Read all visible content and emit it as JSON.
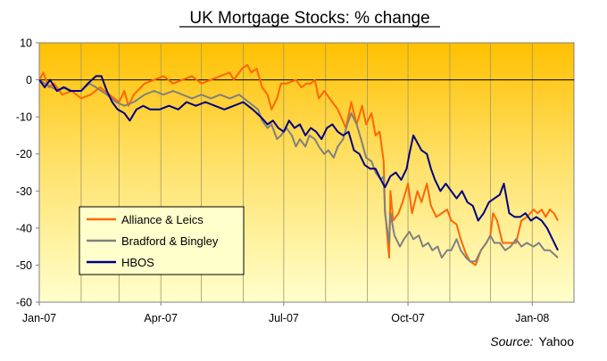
{
  "chart_data": {
    "type": "line",
    "title": "UK Mortgage Stocks: % change",
    "xlabel": "",
    "ylabel": "",
    "x_range": [
      "2007-01-01",
      "2008-01-20"
    ],
    "ylim": [
      -60,
      10
    ],
    "y_ticks": [
      "10",
      "0",
      "-10",
      "-20",
      "-30",
      "-40",
      "-50",
      "-60"
    ],
    "x_ticks": [
      {
        "date": "2007-01-01",
        "label": "Jan-07"
      },
      {
        "date": "2007-04-01",
        "label": "Apr-07"
      },
      {
        "date": "2007-07-01",
        "label": "Jul-07"
      },
      {
        "date": "2007-10-01",
        "label": "Oct-07"
      },
      {
        "date": "2008-01-01",
        "label": "Jan-08"
      }
    ],
    "grid": "vertical lines at each month; horizontal zero line",
    "background": "gradient from orange-gold (top) to pale yellow (bottom)",
    "legend_position": "bottom-left",
    "series": [
      {
        "name": "Alliance & Leics",
        "color": "#ff6600",
        "points": [
          [
            "2007-01-01",
            0
          ],
          [
            "2007-01-04",
            2
          ],
          [
            "2007-01-08",
            -2
          ],
          [
            "2007-01-12",
            -1
          ],
          [
            "2007-01-18",
            -4
          ],
          [
            "2007-01-25",
            -3
          ],
          [
            "2007-02-01",
            -5
          ],
          [
            "2007-02-08",
            -4
          ],
          [
            "2007-02-15",
            -2
          ],
          [
            "2007-02-22",
            -4
          ],
          [
            "2007-03-01",
            -6
          ],
          [
            "2007-03-05",
            -3
          ],
          [
            "2007-03-08",
            -7
          ],
          [
            "2007-03-12",
            -4
          ],
          [
            "2007-03-20",
            -1
          ],
          [
            "2007-03-27",
            0
          ],
          [
            "2007-04-03",
            1
          ],
          [
            "2007-04-10",
            -1
          ],
          [
            "2007-04-17",
            0
          ],
          [
            "2007-04-24",
            1
          ],
          [
            "2007-05-01",
            -1
          ],
          [
            "2007-05-08",
            0
          ],
          [
            "2007-05-15",
            1
          ],
          [
            "2007-05-22",
            2
          ],
          [
            "2007-05-25",
            0
          ],
          [
            "2007-05-31",
            3
          ],
          [
            "2007-06-04",
            4
          ],
          [
            "2007-06-07",
            2
          ],
          [
            "2007-06-11",
            3
          ],
          [
            "2007-06-15",
            -2
          ],
          [
            "2007-06-19",
            -4
          ],
          [
            "2007-06-22",
            -8
          ],
          [
            "2007-06-26",
            -5
          ],
          [
            "2007-06-29",
            -1
          ],
          [
            "2007-07-03",
            -1
          ],
          [
            "2007-07-10",
            0
          ],
          [
            "2007-07-14",
            -2
          ],
          [
            "2007-07-18",
            -1
          ],
          [
            "2007-07-21",
            -1
          ],
          [
            "2007-07-24",
            0
          ],
          [
            "2007-07-27",
            -5
          ],
          [
            "2007-07-31",
            -3
          ],
          [
            "2007-08-06",
            -6
          ],
          [
            "2007-08-10",
            -8
          ],
          [
            "2007-08-16",
            -13
          ],
          [
            "2007-08-20",
            -6
          ],
          [
            "2007-08-24",
            -12
          ],
          [
            "2007-08-28",
            -7
          ],
          [
            "2007-08-31",
            -12
          ],
          [
            "2007-09-04",
            -9
          ],
          [
            "2007-09-07",
            -15
          ],
          [
            "2007-09-10",
            -14
          ],
          [
            "2007-09-13",
            -22
          ],
          [
            "2007-09-14",
            -35
          ],
          [
            "2007-09-17",
            -48
          ],
          [
            "2007-09-18",
            -30
          ],
          [
            "2007-09-20",
            -38
          ],
          [
            "2007-09-24",
            -36
          ],
          [
            "2007-09-27",
            -33
          ],
          [
            "2007-10-01",
            -28
          ],
          [
            "2007-10-04",
            -36
          ],
          [
            "2007-10-08",
            -30
          ],
          [
            "2007-10-11",
            -33
          ],
          [
            "2007-10-15",
            -28
          ],
          [
            "2007-10-18",
            -34
          ],
          [
            "2007-10-22",
            -37
          ],
          [
            "2007-10-26",
            -36
          ],
          [
            "2007-10-30",
            -35
          ],
          [
            "2007-11-02",
            -38
          ],
          [
            "2007-11-06",
            -39
          ],
          [
            "2007-11-09",
            -43
          ],
          [
            "2007-11-13",
            -47
          ],
          [
            "2007-11-16",
            -49
          ],
          [
            "2007-11-20",
            -50
          ],
          [
            "2007-11-24",
            -46
          ],
          [
            "2007-11-28",
            -44
          ],
          [
            "2007-12-01",
            -42
          ],
          [
            "2007-12-03",
            -36
          ],
          [
            "2007-12-06",
            -38
          ],
          [
            "2007-12-10",
            -44
          ],
          [
            "2007-12-13",
            -44
          ],
          [
            "2007-12-17",
            -44
          ],
          [
            "2007-12-20",
            -44
          ],
          [
            "2007-12-24",
            -38
          ],
          [
            "2007-12-28",
            -37
          ],
          [
            "2008-01-02",
            -35
          ],
          [
            "2008-01-05",
            -36
          ],
          [
            "2008-01-08",
            -35
          ],
          [
            "2008-01-11",
            -37
          ],
          [
            "2008-01-14",
            -35
          ],
          [
            "2008-01-17",
            -36
          ],
          [
            "2008-01-20",
            -38
          ]
        ]
      },
      {
        "name": "Bradford & Bingley",
        "color": "#808080",
        "points": [
          [
            "2007-01-01",
            0
          ],
          [
            "2007-01-05",
            -1
          ],
          [
            "2007-01-10",
            -2
          ],
          [
            "2007-01-15",
            -3
          ],
          [
            "2007-01-20",
            -2
          ],
          [
            "2007-01-25",
            -3
          ],
          [
            "2007-02-01",
            -3
          ],
          [
            "2007-02-07",
            -1
          ],
          [
            "2007-02-12",
            -2
          ],
          [
            "2007-02-20",
            -4
          ],
          [
            "2007-02-27",
            -6
          ],
          [
            "2007-03-05",
            -7
          ],
          [
            "2007-03-12",
            -6
          ],
          [
            "2007-03-20",
            -4
          ],
          [
            "2007-03-27",
            -3
          ],
          [
            "2007-04-03",
            -4
          ],
          [
            "2007-04-10",
            -3
          ],
          [
            "2007-04-17",
            -4
          ],
          [
            "2007-04-24",
            -5
          ],
          [
            "2007-05-01",
            -4
          ],
          [
            "2007-05-08",
            -5
          ],
          [
            "2007-05-15",
            -4
          ],
          [
            "2007-05-22",
            -5
          ],
          [
            "2007-05-29",
            -4
          ],
          [
            "2007-06-05",
            -6
          ],
          [
            "2007-06-12",
            -8
          ],
          [
            "2007-06-15",
            -11
          ],
          [
            "2007-06-19",
            -13
          ],
          [
            "2007-06-22",
            -12
          ],
          [
            "2007-06-26",
            -16
          ],
          [
            "2007-06-29",
            -15
          ],
          [
            "2007-07-03",
            -13
          ],
          [
            "2007-07-07",
            -15
          ],
          [
            "2007-07-10",
            -18
          ],
          [
            "2007-07-13",
            -16
          ],
          [
            "2007-07-17",
            -18
          ],
          [
            "2007-07-20",
            -15
          ],
          [
            "2007-07-24",
            -16
          ],
          [
            "2007-07-27",
            -18
          ],
          [
            "2007-07-31",
            -20
          ],
          [
            "2007-08-03",
            -19
          ],
          [
            "2007-08-07",
            -21
          ],
          [
            "2007-08-10",
            -18
          ],
          [
            "2007-08-14",
            -16
          ],
          [
            "2007-08-17",
            -12
          ],
          [
            "2007-08-20",
            -9
          ],
          [
            "2007-08-24",
            -12
          ],
          [
            "2007-08-28",
            -17
          ],
          [
            "2007-08-31",
            -21
          ],
          [
            "2007-09-04",
            -22
          ],
          [
            "2007-09-07",
            -25
          ],
          [
            "2007-09-11",
            -27
          ],
          [
            "2007-09-13",
            -26
          ],
          [
            "2007-09-14",
            -36
          ],
          [
            "2007-09-17",
            -44
          ],
          [
            "2007-09-18",
            -36
          ],
          [
            "2007-09-21",
            -42
          ],
          [
            "2007-09-25",
            -45
          ],
          [
            "2007-09-28",
            -43
          ],
          [
            "2007-10-02",
            -41
          ],
          [
            "2007-10-05",
            -43
          ],
          [
            "2007-10-09",
            -42
          ],
          [
            "2007-10-12",
            -45
          ],
          [
            "2007-10-16",
            -44
          ],
          [
            "2007-10-19",
            -46
          ],
          [
            "2007-10-23",
            -45
          ],
          [
            "2007-10-26",
            -48
          ],
          [
            "2007-10-30",
            -46
          ],
          [
            "2007-11-02",
            -46
          ],
          [
            "2007-11-06",
            -43
          ],
          [
            "2007-11-09",
            -46
          ],
          [
            "2007-11-13",
            -48
          ],
          [
            "2007-11-16",
            -49
          ],
          [
            "2007-11-20",
            -49
          ],
          [
            "2007-11-24",
            -46
          ],
          [
            "2007-11-28",
            -44
          ],
          [
            "2007-12-01",
            -42
          ],
          [
            "2007-12-04",
            -44
          ],
          [
            "2007-12-08",
            -44
          ],
          [
            "2007-12-12",
            -46
          ],
          [
            "2007-12-16",
            -45
          ],
          [
            "2007-12-20",
            -43
          ],
          [
            "2007-12-24",
            -45
          ],
          [
            "2007-12-28",
            -44
          ],
          [
            "2008-01-02",
            -45
          ],
          [
            "2008-01-06",
            -44
          ],
          [
            "2008-01-10",
            -46
          ],
          [
            "2008-01-14",
            -46
          ],
          [
            "2008-01-17",
            -47
          ],
          [
            "2008-01-20",
            -48
          ]
        ]
      },
      {
        "name": "HBOS",
        "color": "#000080",
        "points": [
          [
            "2007-01-01",
            0
          ],
          [
            "2007-01-05",
            -2
          ],
          [
            "2007-01-09",
            0
          ],
          [
            "2007-01-14",
            -3
          ],
          [
            "2007-01-19",
            -2
          ],
          [
            "2007-01-24",
            -3
          ],
          [
            "2007-02-01",
            -3
          ],
          [
            "2007-02-06",
            -1
          ],
          [
            "2007-02-12",
            1
          ],
          [
            "2007-02-16",
            1
          ],
          [
            "2007-02-20",
            -3
          ],
          [
            "2007-02-24",
            -6
          ],
          [
            "2007-02-28",
            -8
          ],
          [
            "2007-03-05",
            -9
          ],
          [
            "2007-03-09",
            -11
          ],
          [
            "2007-03-14",
            -8
          ],
          [
            "2007-03-19",
            -7
          ],
          [
            "2007-03-24",
            -8
          ],
          [
            "2007-03-31",
            -8
          ],
          [
            "2007-04-07",
            -7
          ],
          [
            "2007-04-14",
            -8
          ],
          [
            "2007-04-20",
            -6
          ],
          [
            "2007-04-27",
            -7
          ],
          [
            "2007-05-04",
            -6
          ],
          [
            "2007-05-11",
            -7
          ],
          [
            "2007-05-18",
            -8
          ],
          [
            "2007-05-25",
            -7
          ],
          [
            "2007-06-01",
            -6
          ],
          [
            "2007-06-08",
            -8
          ],
          [
            "2007-06-14",
            -10
          ],
          [
            "2007-06-19",
            -12
          ],
          [
            "2007-06-23",
            -11
          ],
          [
            "2007-06-27",
            -13
          ],
          [
            "2007-07-01",
            -14
          ],
          [
            "2007-07-05",
            -11
          ],
          [
            "2007-07-09",
            -13
          ],
          [
            "2007-07-13",
            -12
          ],
          [
            "2007-07-17",
            -15
          ],
          [
            "2007-07-21",
            -13
          ],
          [
            "2007-07-25",
            -14
          ],
          [
            "2007-07-29",
            -16
          ],
          [
            "2007-08-02",
            -13
          ],
          [
            "2007-08-06",
            -12
          ],
          [
            "2007-08-10",
            -14
          ],
          [
            "2007-08-14",
            -15
          ],
          [
            "2007-08-18",
            -14
          ],
          [
            "2007-08-22",
            -19
          ],
          [
            "2007-08-26",
            -20
          ],
          [
            "2007-08-30",
            -23
          ],
          [
            "2007-09-03",
            -24
          ],
          [
            "2007-09-07",
            -24
          ],
          [
            "2007-09-11",
            -27
          ],
          [
            "2007-09-14",
            -29
          ],
          [
            "2007-09-18",
            -26
          ],
          [
            "2007-09-22",
            -25
          ],
          [
            "2007-09-26",
            -27
          ],
          [
            "2007-09-30",
            -24
          ],
          [
            "2007-10-02",
            -20
          ],
          [
            "2007-10-05",
            -15
          ],
          [
            "2007-10-08",
            -17
          ],
          [
            "2007-10-11",
            -19
          ],
          [
            "2007-10-15",
            -20
          ],
          [
            "2007-10-18",
            -24
          ],
          [
            "2007-10-21",
            -27
          ],
          [
            "2007-10-25",
            -30
          ],
          [
            "2007-10-29",
            -28
          ],
          [
            "2007-11-02",
            -30
          ],
          [
            "2007-11-06",
            -32
          ],
          [
            "2007-11-10",
            -30
          ],
          [
            "2007-11-14",
            -33
          ],
          [
            "2007-11-18",
            -34
          ],
          [
            "2007-11-22",
            -38
          ],
          [
            "2007-11-26",
            -36
          ],
          [
            "2007-11-30",
            -33
          ],
          [
            "2007-12-04",
            -32
          ],
          [
            "2007-12-08",
            -31
          ],
          [
            "2007-12-11",
            -28
          ],
          [
            "2007-12-15",
            -36
          ],
          [
            "2007-12-19",
            -37
          ],
          [
            "2007-12-23",
            -37
          ],
          [
            "2007-12-27",
            -36
          ],
          [
            "2007-12-31",
            -38
          ],
          [
            "2008-01-04",
            -37
          ],
          [
            "2008-01-08",
            -38
          ],
          [
            "2008-01-12",
            -40
          ],
          [
            "2008-01-16",
            -43
          ],
          [
            "2008-01-20",
            -46
          ]
        ]
      }
    ],
    "source_label": "Source:",
    "source_name": "Yahoo"
  }
}
